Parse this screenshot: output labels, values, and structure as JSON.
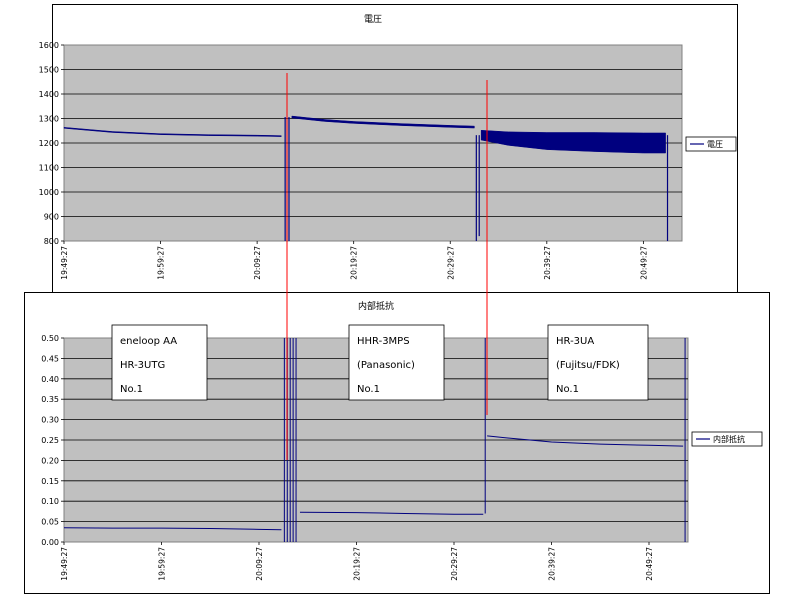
{
  "chart_data": [
    {
      "type": "line",
      "title": "電圧",
      "yticks": [
        "1600",
        "1500",
        "1400",
        "1300",
        "1200",
        "1100",
        "1000",
        "900",
        "800"
      ],
      "ylim": [
        800,
        1600
      ],
      "xticks": [
        "19:49:27",
        "19:59:27",
        "20:09:27",
        "20:19:27",
        "20:29:27",
        "20:39:27",
        "20:49:27"
      ],
      "grid": true,
      "legend_position": "right",
      "series": [
        {
          "name": "電圧",
          "color": "#00007f",
          "segments": [
            {
              "x": [
                0,
                5,
                10,
                15,
                20,
                22.5
              ],
              "y": [
                1262,
                1245,
                1236,
                1232,
                1230,
                1228
              ],
              "band": [
                4,
                4,
                4,
                4,
                4,
                4
              ]
            },
            {
              "x": [
                23.6,
                27,
                30,
                35,
                40,
                42.5
              ],
              "y": [
                1306,
                1292,
                1284,
                1275,
                1268,
                1265
              ],
              "band": [
                8,
                8,
                8,
                8,
                8,
                8
              ]
            },
            {
              "x": [
                43.2,
                46,
                50,
                55,
                60,
                62.3
              ],
              "y": [
                1232,
                1218,
                1208,
                1204,
                1200,
                1200
              ],
              "band": [
                40,
                55,
                70,
                78,
                82,
                82
              ]
            }
          ],
          "dips": [
            {
              "x": 22.9,
              "to": 800
            },
            {
              "x": 23.3,
              "to": 800
            },
            {
              "x": 42.7,
              "to": 800
            },
            {
              "x": 43.0,
              "to": 820
            },
            {
              "x": 62.5,
              "to": 800
            }
          ]
        }
      ]
    },
    {
      "type": "line",
      "title": "内部抵抗",
      "yticks": [
        "0.50",
        "0.45",
        "0.40",
        "0.35",
        "0.30",
        "0.25",
        "0.20",
        "0.15",
        "0.10",
        "0.05",
        "0.00"
      ],
      "ylim": [
        0,
        0.5
      ],
      "xticks": [
        "19:49:27",
        "19:59:27",
        "20:09:27",
        "20:19:27",
        "20:29:27",
        "20:39:27",
        "20:49:27"
      ],
      "grid": true,
      "legend_position": "right",
      "series": [
        {
          "name": "内部抵抗",
          "color": "#00007f",
          "segments": [
            {
              "x": [
                0,
                5,
                10,
                15,
                20,
                22.3
              ],
              "y": [
                0.035,
                0.034,
                0.034,
                0.033,
                0.031,
                0.03
              ]
            },
            {
              "x": [
                24.2,
                30,
                35,
                40,
                43.0
              ],
              "y": [
                0.073,
                0.072,
                0.07,
                0.068,
                0.068
              ]
            },
            {
              "x": [
                43.4,
                45,
                50,
                55,
                60,
                63.5
              ],
              "y": [
                0.26,
                0.256,
                0.245,
                0.24,
                0.237,
                0.235
              ]
            }
          ],
          "spikes": [
            {
              "x": 22.6,
              "from": 0.0,
              "to": 0.5
            },
            {
              "x": 22.9,
              "from": 0.0,
              "to": 0.5
            },
            {
              "x": 23.2,
              "from": 0.0,
              "to": 0.5
            },
            {
              "x": 23.5,
              "from": 0.0,
              "to": 0.5
            },
            {
              "x": 23.8,
              "from": 0.0,
              "to": 0.5
            },
            {
              "x": 43.2,
              "from": 0.07,
              "to": 0.5
            },
            {
              "x": 63.7,
              "from": 0.0,
              "to": 0.5
            }
          ]
        }
      ]
    }
  ],
  "annotations": [
    {
      "lines": [
        "eneloop AA",
        "HR-3UTG",
        "No.1"
      ]
    },
    {
      "lines": [
        "HHR-3MPS",
        "(Panasonic)",
        "No.1"
      ]
    },
    {
      "lines": [
        "HR-3UA",
        "(Fujitsu/FDK)",
        "No.1"
      ]
    }
  ],
  "separator_color": "#ff0000"
}
